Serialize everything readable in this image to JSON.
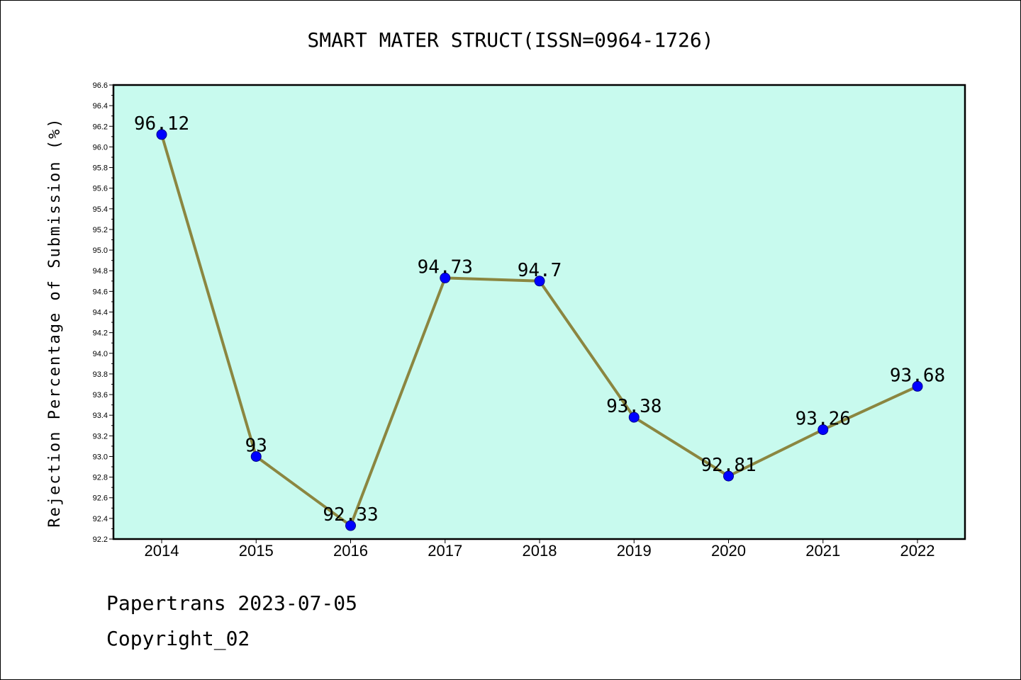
{
  "chart_data": {
    "type": "line",
    "title": "SMART MATER STRUCT(ISSN=0964-1726)",
    "xlabel": "",
    "ylabel": "Rejection Percentage of Submission (%)",
    "categories": [
      "2014",
      "2015",
      "2016",
      "2017",
      "2018",
      "2019",
      "2020",
      "2021",
      "2022"
    ],
    "values": [
      96.12,
      93,
      92.33,
      94.73,
      94.7,
      93.38,
      92.81,
      93.26,
      93.68
    ],
    "data_labels": [
      "96.12",
      "93",
      "92.33",
      "94.73",
      "94.7",
      "93.38",
      "92.81",
      "93.26",
      "93.68"
    ],
    "ylim": [
      92.2,
      96.6
    ],
    "yticks": [
      "92.2",
      "92.4",
      "92.6",
      "92.8",
      "93.0",
      "93.2",
      "93.4",
      "93.6",
      "93.8",
      "94.0",
      "94.2",
      "94.4",
      "94.6",
      "94.8",
      "95.0",
      "95.2",
      "95.4",
      "95.6",
      "95.8",
      "96.0",
      "96.2",
      "96.4",
      "96.6"
    ],
    "grid": false,
    "colors": {
      "plot_background": "#c8faee",
      "line": "#8b8640",
      "marker": "#0000ff"
    }
  },
  "footer": {
    "line1": "Papertrans 2023-07-05",
    "line2": "Copyright_02"
  }
}
